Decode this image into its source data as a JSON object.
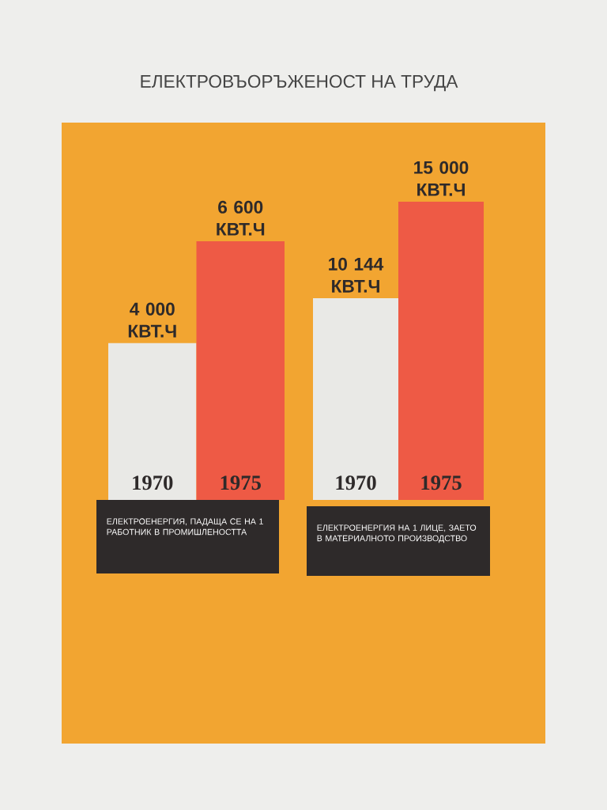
{
  "chart_data": [
    {
      "type": "bar",
      "title": "ЕЛЕКТРОВЪОРЪЖЕНОСТ НА ТРУДА",
      "xlabel": "ЕЛЕКТРОЕНЕРГИЯ, ПАДАЩА СЕ НА 1 РАБОТНИК В ПРОМИШЛЕНОСТТА",
      "categories": [
        "1970",
        "1975"
      ],
      "values": [
        4000,
        6600
      ],
      "colors": [
        "#e9e9e6",
        "#ee5a45"
      ],
      "value_labels": [
        "4 000 КВТ.Ч",
        "6 600 КВТ.Ч"
      ]
    },
    {
      "type": "bar",
      "xlabel": "ЕЛЕКТРОЕНЕРГИЯ НА 1 ЛИЦЕ, ЗАЕТО В МАТЕРИАЛНОТО ПРОИЗВОДСТВО",
      "categories": [
        "1970",
        "1975"
      ],
      "values": [
        10144,
        15000
      ],
      "colors": [
        "#e9e9e6",
        "#ee5a45"
      ],
      "value_labels": [
        "10 144 КВТ.Ч",
        "15 000 КВТ.Ч"
      ]
    }
  ]
}
